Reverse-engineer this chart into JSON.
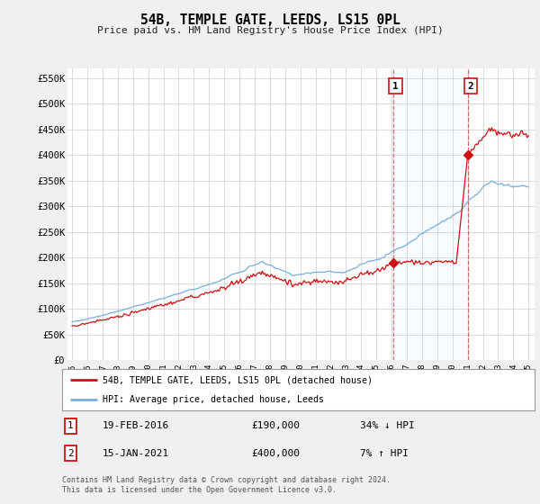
{
  "title": "54B, TEMPLE GATE, LEEDS, LS15 0PL",
  "subtitle": "Price paid vs. HM Land Registry's House Price Index (HPI)",
  "ylabel_ticks": [
    "£0",
    "£50K",
    "£100K",
    "£150K",
    "£200K",
    "£250K",
    "£300K",
    "£350K",
    "£400K",
    "£450K",
    "£500K",
    "£550K"
  ],
  "ytick_values": [
    0,
    50000,
    100000,
    150000,
    200000,
    250000,
    300000,
    350000,
    400000,
    450000,
    500000,
    550000
  ],
  "ylim": [
    0,
    570000
  ],
  "hpi_color": "#7aaddc",
  "price_color": "#cc1111",
  "vline_color": "#cc1111",
  "highlight_bg_color": "#ddeeff",
  "sale1_year": 2016.12,
  "sale2_year": 2021.04,
  "sale1_price": 190000,
  "sale2_price": 400000,
  "legend_label_price": "54B, TEMPLE GATE, LEEDS, LS15 0PL (detached house)",
  "legend_label_hpi": "HPI: Average price, detached house, Leeds",
  "table_row1": [
    "1",
    "19-FEB-2016",
    "£190,000",
    "34% ↓ HPI"
  ],
  "table_row2": [
    "2",
    "15-JAN-2021",
    "£400,000",
    "7% ↑ HPI"
  ],
  "footnote": "Contains HM Land Registry data © Crown copyright and database right 2024.\nThis data is licensed under the Open Government Licence v3.0.",
  "bg_color": "#f0f0f0",
  "plot_bg_color": "#ffffff",
  "grid_color": "#cccccc"
}
